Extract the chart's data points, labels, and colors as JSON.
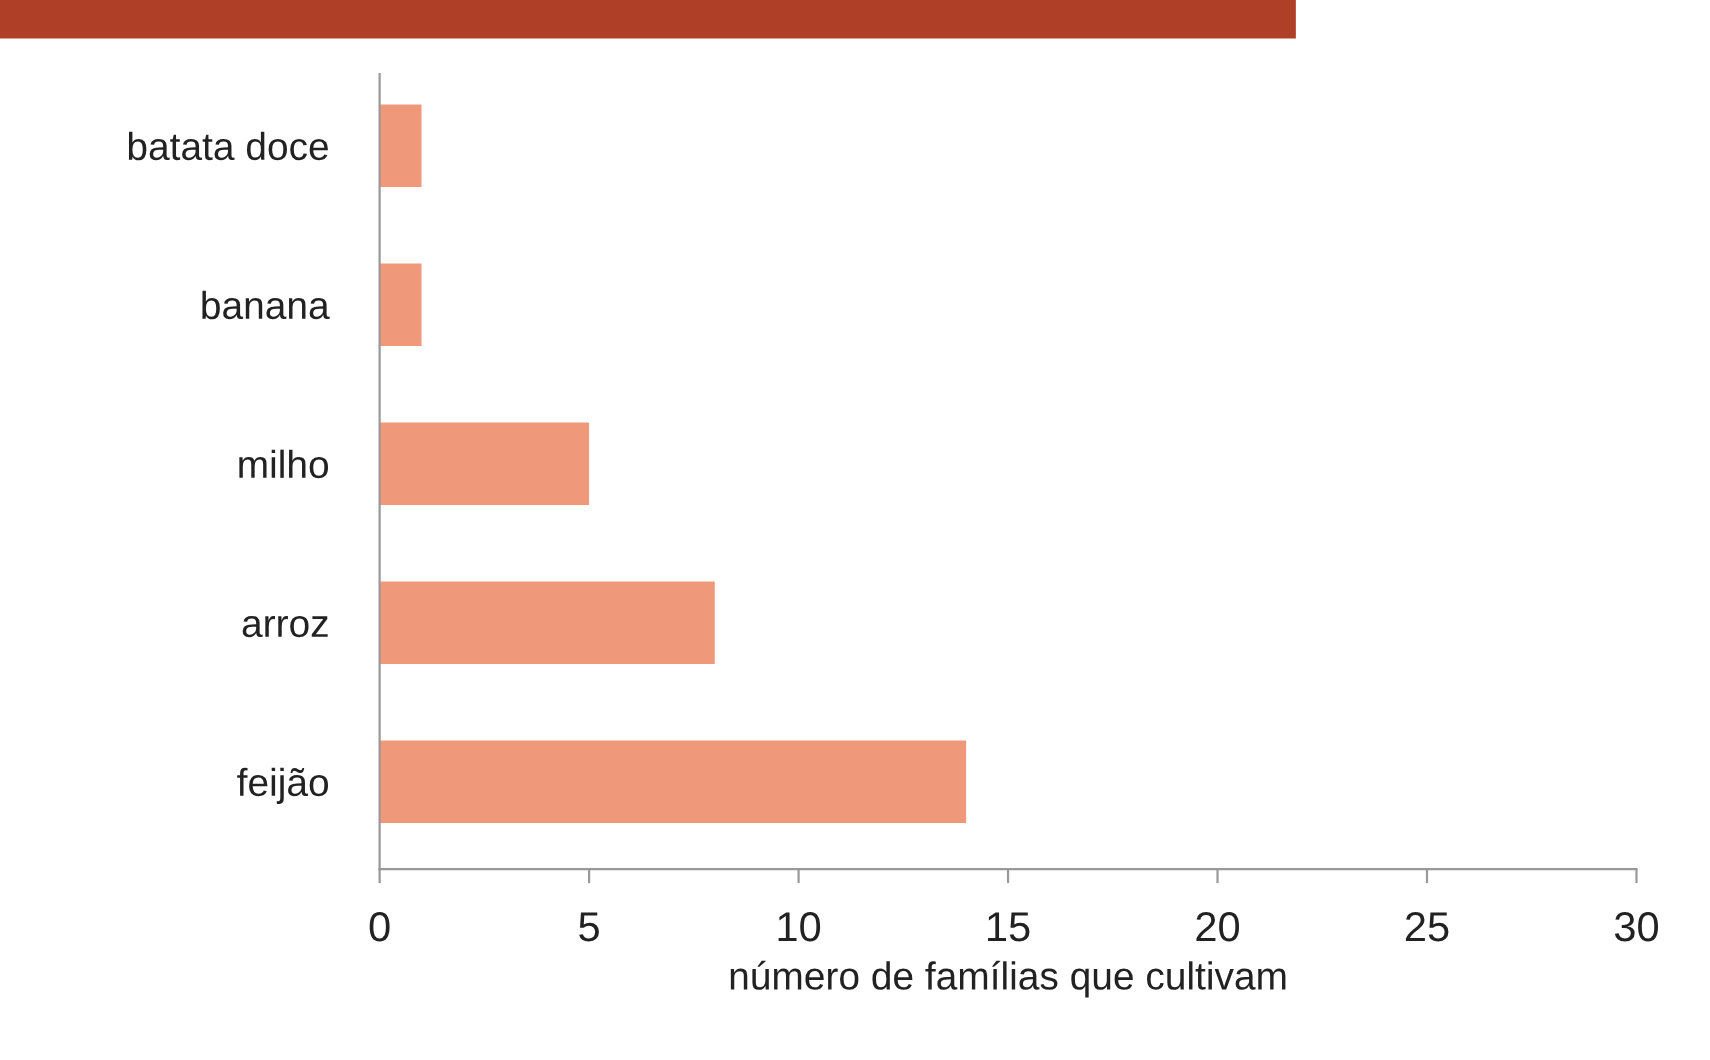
{
  "chart_data": {
    "type": "bar",
    "orientation": "horizontal",
    "xlabel": "número de famílias que cultivam",
    "categories": [
      "batata doce",
      "banana",
      "milho",
      "arroz",
      "feijão"
    ],
    "values": [
      1,
      1,
      5,
      8,
      14
    ],
    "color": "#f0997a",
    "xlim": [
      0,
      30
    ],
    "xticks": [
      0,
      5,
      10,
      15,
      20,
      25,
      30
    ],
    "grid": false
  }
}
